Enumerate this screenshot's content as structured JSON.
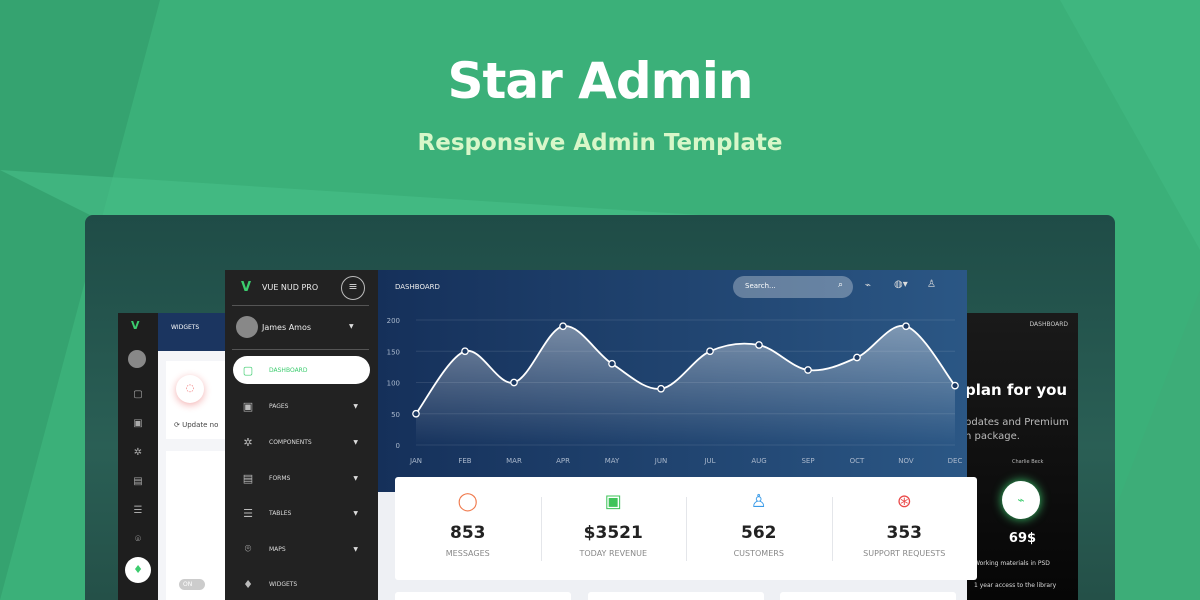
{
  "banner": {
    "title": "Star Admin",
    "subtitle": "Responsive Admin Template"
  },
  "colors": {
    "background": "#3bb079",
    "accent": "#3ccc6e",
    "header": "#1b3560",
    "sidebar": "#222222"
  },
  "mini_panel": {
    "header": "WIDGETS",
    "update_text": "Update no",
    "toggle": "ON"
  },
  "sidebar": {
    "brand": "VUE NUD PRO",
    "user": "James Amos",
    "items": [
      {
        "label": "DASHBOARD",
        "icon": "cube-icon",
        "active": true
      },
      {
        "label": "PAGES",
        "icon": "image-icon"
      },
      {
        "label": "COMPONENTS",
        "icon": "atom-icon"
      },
      {
        "label": "FORMS",
        "icon": "form-icon"
      },
      {
        "label": "TABLES",
        "icon": "list-icon"
      },
      {
        "label": "MAPS",
        "icon": "map-pin-icon"
      },
      {
        "label": "WIDGETS",
        "icon": "diamond-icon"
      }
    ]
  },
  "header": {
    "title": "DASHBOARD",
    "search_placeholder": "Search..."
  },
  "chart_data": {
    "type": "line",
    "categories": [
      "JAN",
      "FEB",
      "MAR",
      "APR",
      "MAY",
      "JUN",
      "JUL",
      "AUG",
      "SEP",
      "OCT",
      "NOV",
      "DEC"
    ],
    "values": [
      50,
      150,
      100,
      190,
      130,
      90,
      150,
      160,
      120,
      140,
      190,
      95
    ],
    "yticks": [
      0,
      50,
      100,
      150,
      200
    ],
    "ylim": [
      0,
      200
    ],
    "grid": true,
    "smooth": true
  },
  "stats": [
    {
      "value": "853",
      "label": "MESSAGES",
      "icon": "chat-icon",
      "color": "#f07a4d"
    },
    {
      "value": "$3521",
      "label": "TODAY REVENUE",
      "icon": "money-icon",
      "color": "#3fc45a"
    },
    {
      "value": "562",
      "label": "CUSTOMERS",
      "icon": "user-icon",
      "color": "#3a9be8"
    },
    {
      "value": "353",
      "label": "SUPPORT REQUESTS",
      "icon": "lifebuoy-icon",
      "color": "#ea4a4a"
    }
  ],
  "right_panel": {
    "header": "DASHBOARD",
    "heading": "plan for you",
    "desc1": "pdates and Premium",
    "desc2": "n package.",
    "small": "Charlie Beck",
    "price": "69$",
    "features": [
      "Working materials in PSD",
      "1 year access to the library"
    ]
  }
}
